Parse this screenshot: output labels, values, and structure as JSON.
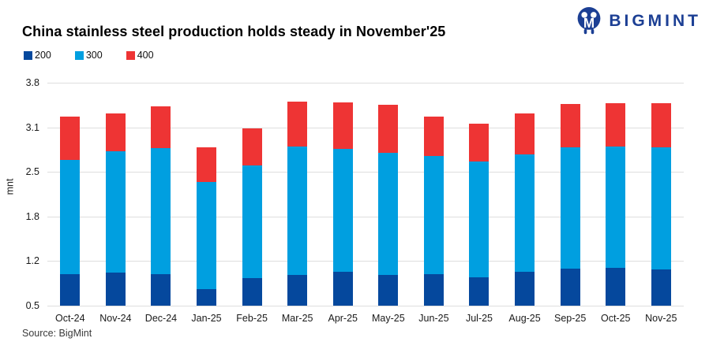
{
  "header": {
    "title": "China stainless steel production holds steady in November'25",
    "brand": "BIGMINT"
  },
  "legend": [
    {
      "label": "200",
      "color": "#05489d"
    },
    {
      "label": "300",
      "color": "#009fe0"
    },
    {
      "label": "400",
      "color": "#ee3434"
    }
  ],
  "chart_data": {
    "type": "bar",
    "stacked": true,
    "title": "China stainless steel production holds steady in November'25",
    "xlabel": "",
    "ylabel": "mnt",
    "ylim": [
      0.5,
      3.8
    ],
    "ytick_labels_top_down": [
      "3.8",
      "3.1",
      "2.5",
      "1.8",
      "1.2",
      "0.5"
    ],
    "grid": true,
    "legend_position": "top-left",
    "categories": [
      "Oct-24",
      "Nov-24",
      "Dec-24",
      "Jan-25",
      "Feb-25",
      "Mar-25",
      "Apr-25",
      "May-25",
      "Jun-25",
      "Jul-25",
      "Aug-25",
      "Sep-25",
      "Oct-25",
      "Nov-25"
    ],
    "series": [
      {
        "name": "200",
        "color": "#05489d",
        "values": [
          0.97,
          0.99,
          0.97,
          0.75,
          0.91,
          0.95,
          1.0,
          0.96,
          0.97,
          0.92,
          1.0,
          1.05,
          1.06,
          1.04
        ]
      },
      {
        "name": "300",
        "color": "#009fe0",
        "values": [
          1.69,
          1.8,
          1.86,
          1.58,
          1.66,
          1.91,
          1.82,
          1.8,
          1.75,
          1.72,
          1.74,
          1.79,
          1.8,
          1.8
        ]
      },
      {
        "name": "400",
        "color": "#ee3434",
        "values": [
          0.64,
          0.55,
          0.62,
          0.52,
          0.55,
          0.66,
          0.69,
          0.71,
          0.58,
          0.56,
          0.6,
          0.65,
          0.64,
          0.66
        ]
      }
    ],
    "totals": [
      3.3,
      3.34,
      3.45,
      2.85,
      3.12,
      3.52,
      3.51,
      3.47,
      3.3,
      3.2,
      3.34,
      3.49,
      3.5,
      3.5
    ]
  },
  "footer": {
    "source": "Source: BigMint"
  },
  "colors": {
    "brand_navy": "#1c3f94",
    "gridline": "#dedede",
    "series_200": "#05489d",
    "series_300": "#009fe0",
    "series_400": "#ee3434"
  }
}
